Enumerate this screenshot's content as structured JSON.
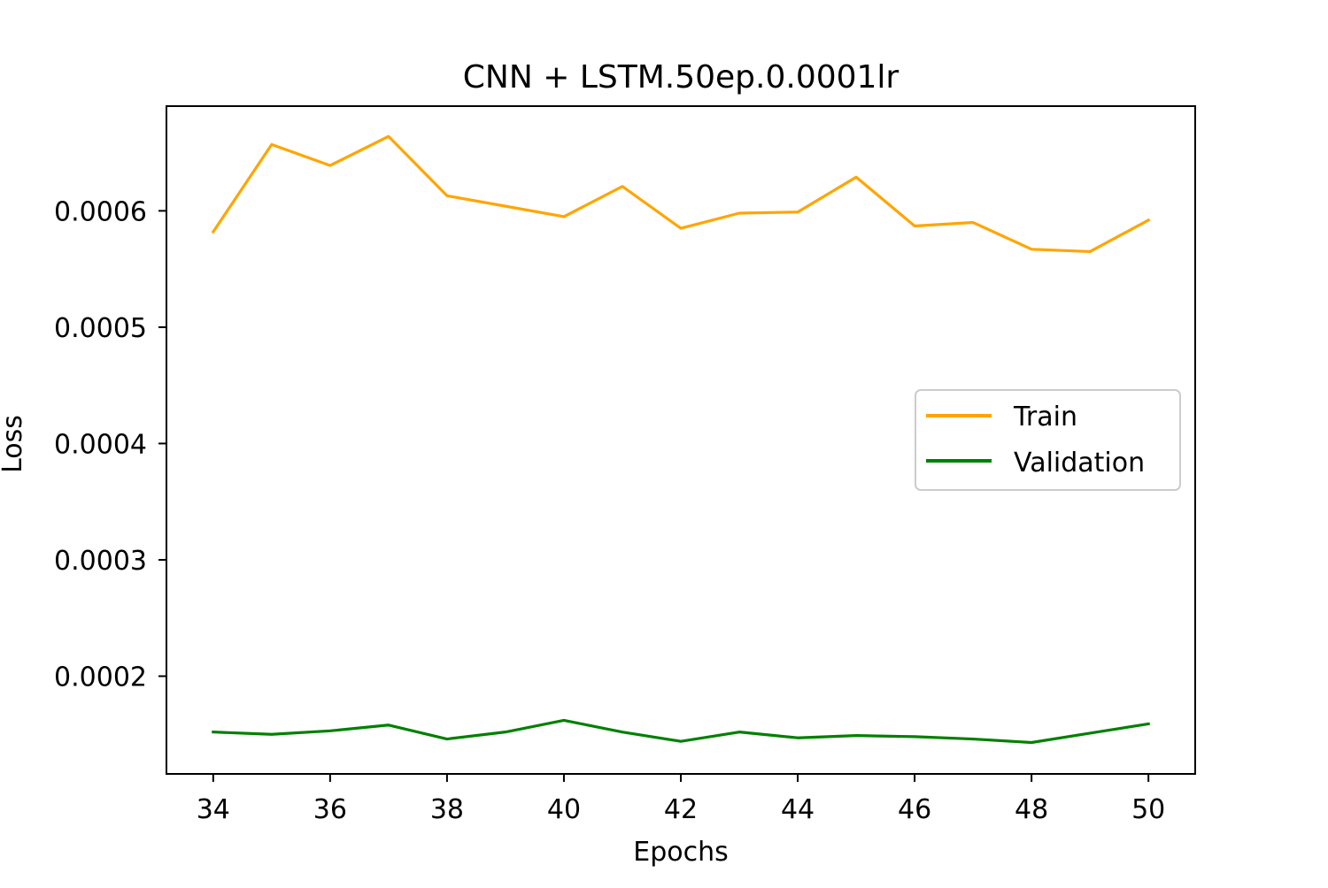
{
  "chart_data": {
    "type": "line",
    "title": "CNN + LSTM.50ep.0.0001lr",
    "xlabel": "Epochs",
    "ylabel": "Loss",
    "x": [
      34,
      35,
      36,
      37,
      38,
      39,
      40,
      41,
      42,
      43,
      44,
      45,
      46,
      47,
      48,
      49,
      50
    ],
    "xlim": [
      33.2,
      50.8
    ],
    "ylim": [
      0.000116,
      0.00069
    ],
    "xticks": [
      34,
      36,
      38,
      40,
      42,
      44,
      46,
      48,
      50
    ],
    "xtick_labels": [
      "34",
      "36",
      "38",
      "40",
      "42",
      "44",
      "46",
      "48",
      "50"
    ],
    "yticks": [
      0.0002,
      0.0003,
      0.0004,
      0.0005,
      0.0006
    ],
    "ytick_labels": [
      "0.0002",
      "0.0003",
      "0.0004",
      "0.0005",
      "0.0006"
    ],
    "grid": false,
    "legend": "center-right",
    "series": [
      {
        "name": "Train",
        "color": "#ffa500",
        "values": [
          0.000582,
          0.000657,
          0.000639,
          0.000664,
          0.000613,
          0.000604,
          0.000595,
          0.000621,
          0.000585,
          0.000598,
          0.000599,
          0.000629,
          0.000587,
          0.00059,
          0.000567,
          0.000565,
          0.000592
        ]
      },
      {
        "name": "Validation",
        "color": "#008000",
        "values": [
          0.000152,
          0.00015,
          0.000153,
          0.000158,
          0.000146,
          0.000152,
          0.000162,
          0.000152,
          0.000144,
          0.000152,
          0.000147,
          0.000149,
          0.000148,
          0.000146,
          0.000143,
          0.000151,
          0.000159
        ]
      }
    ]
  }
}
